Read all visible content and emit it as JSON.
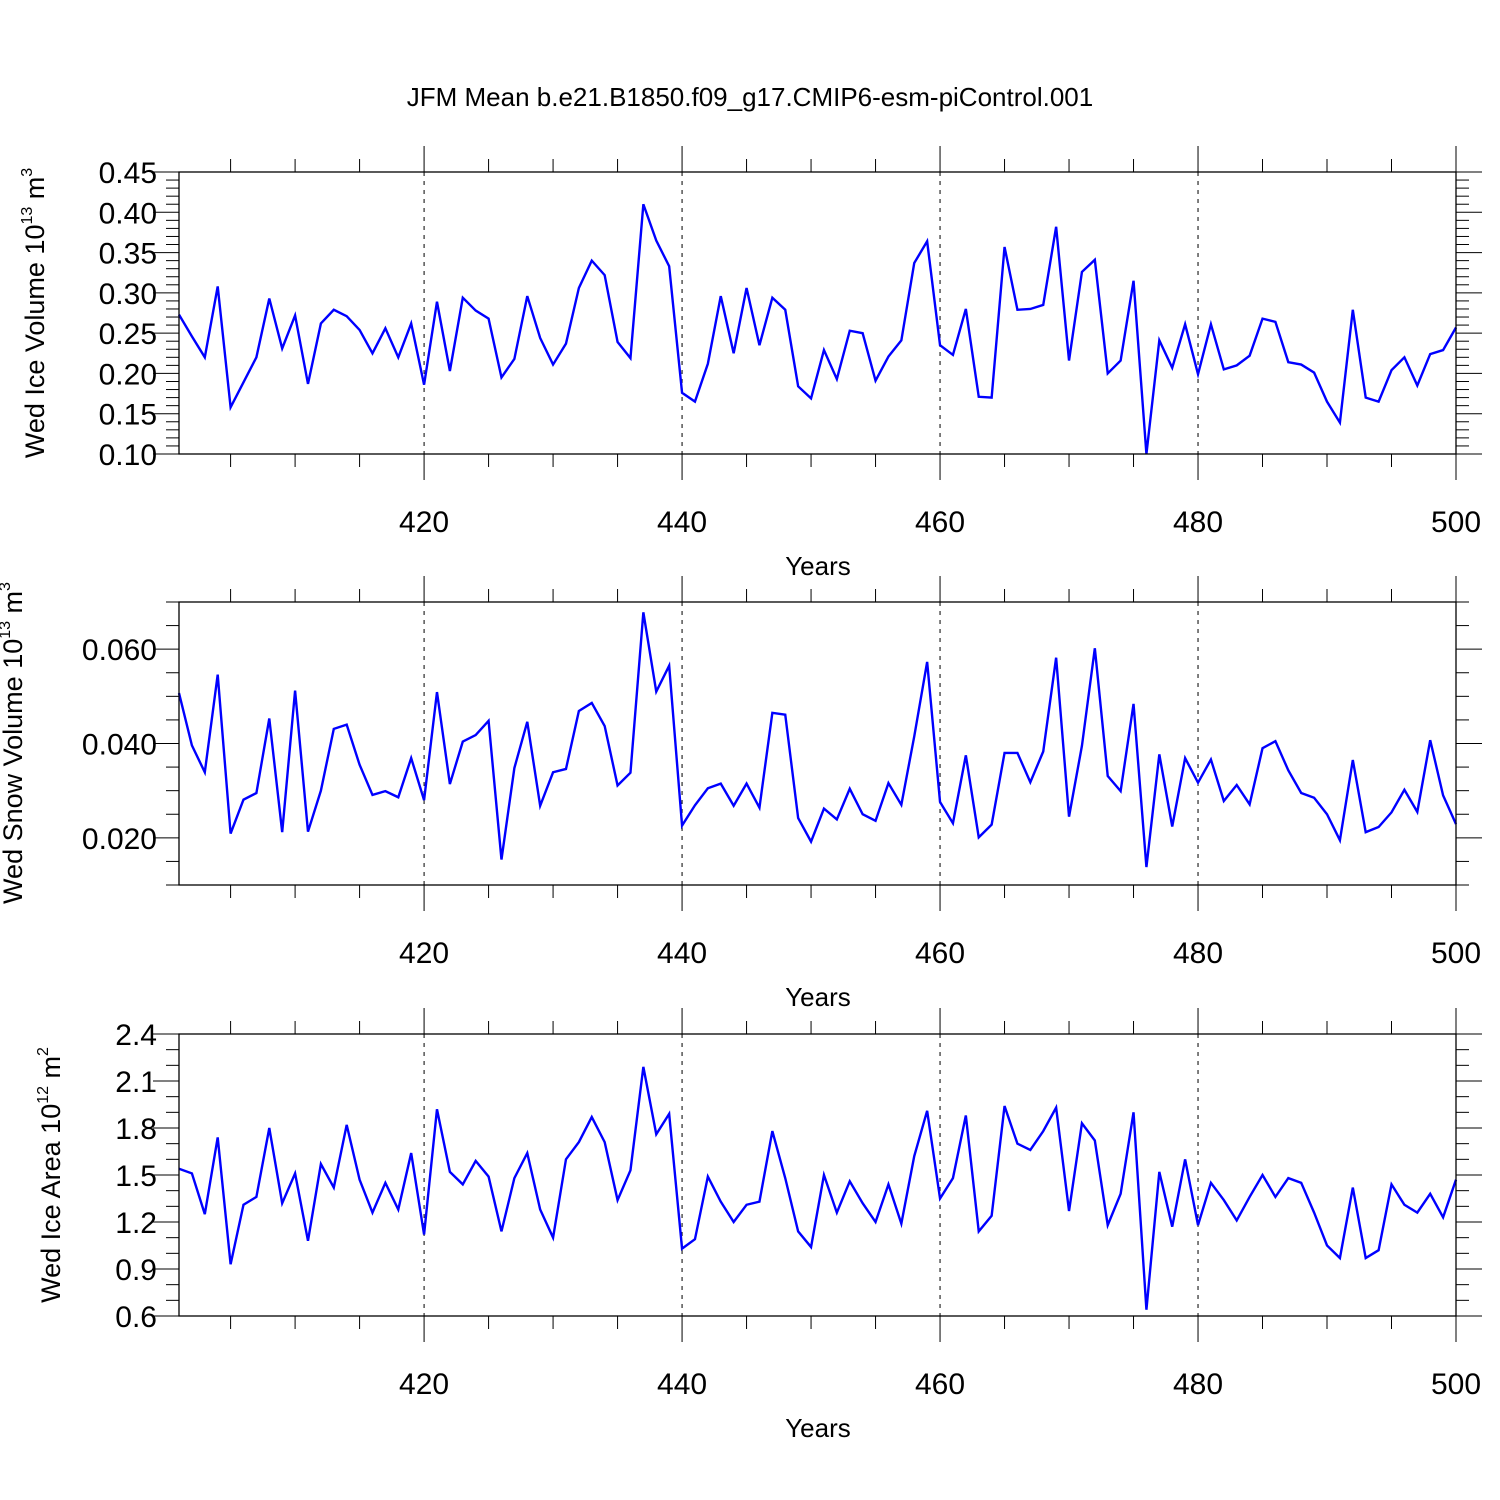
{
  "title": "JFM Mean b.e21.B1850.f09_g17.CMIP6-esm-piControl.001",
  "chart_data": [
    {
      "type": "line",
      "ylabel": {
        "main": "Wed Ice Volume 10",
        "exp": "13",
        "unit": " m",
        "unit_exp": "3"
      },
      "xlabel": "Years",
      "xlim": [
        401,
        500
      ],
      "ylim": [
        0.1,
        0.45
      ],
      "yticks": [
        0.1,
        0.15,
        0.2,
        0.25,
        0.3,
        0.35,
        0.4,
        0.45
      ],
      "ytick_labels": [
        "0.10",
        "0.15",
        "0.20",
        "0.25",
        "0.30",
        "0.35",
        "0.40",
        "0.45"
      ],
      "ymajor_step": 0.05,
      "yminor_step": 0.01,
      "xticks": [
        420,
        440,
        460,
        480,
        500
      ],
      "xtick_labels": [
        "420",
        "440",
        "460",
        "480",
        "500"
      ],
      "grid_x": [
        420,
        440,
        460,
        480
      ],
      "color": "#0000ff",
      "x_start": 401,
      "values": [
        0.273,
        0.246,
        0.22,
        0.308,
        0.158,
        0.189,
        0.22,
        0.293,
        0.231,
        0.272,
        0.187,
        0.262,
        0.279,
        0.271,
        0.254,
        0.225,
        0.256,
        0.22,
        0.262,
        0.186,
        0.289,
        0.203,
        0.294,
        0.278,
        0.268,
        0.195,
        0.218,
        0.296,
        0.244,
        0.211,
        0.237,
        0.306,
        0.34,
        0.322,
        0.239,
        0.219,
        0.41,
        0.365,
        0.333,
        0.176,
        0.165,
        0.212,
        0.296,
        0.225,
        0.306,
        0.235,
        0.294,
        0.279,
        0.184,
        0.169,
        0.229,
        0.193,
        0.253,
        0.25,
        0.191,
        0.221,
        0.241,
        0.337,
        0.364,
        0.235,
        0.223,
        0.28,
        0.171,
        0.17,
        0.357,
        0.279,
        0.28,
        0.285,
        0.382,
        0.216,
        0.326,
        0.341,
        0.2,
        0.216,
        0.315,
        0.1,
        0.241,
        0.207,
        0.261,
        0.199,
        0.261,
        0.205,
        0.21,
        0.222,
        0.268,
        0.264,
        0.214,
        0.211,
        0.201,
        0.165,
        0.139,
        0.279,
        0.17,
        0.165,
        0.204,
        0.22,
        0.185,
        0.224,
        0.229,
        0.257
      ]
    },
    {
      "type": "line",
      "ylabel": {
        "main": "Wed Snow Volume 10",
        "exp": "13",
        "unit": " m",
        "unit_exp": "3"
      },
      "xlabel": "Years",
      "xlim": [
        401,
        500
      ],
      "ylim": [
        0.01,
        0.07
      ],
      "yticks": [
        0.02,
        0.04,
        0.06
      ],
      "ytick_labels": [
        "0.020",
        "0.040",
        "0.060"
      ],
      "ymajor_step": 0.02,
      "yminor_step": 0.005,
      "xticks": [
        420,
        440,
        460,
        480,
        500
      ],
      "xtick_labels": [
        "420",
        "440",
        "460",
        "480",
        "500"
      ],
      "grid_x": [
        420,
        440,
        460,
        480
      ],
      "color": "#0000ff",
      "x_start": 401,
      "values": [
        0.0507,
        0.0396,
        0.0339,
        0.0546,
        0.0209,
        0.0281,
        0.0295,
        0.0453,
        0.0212,
        0.0512,
        0.0213,
        0.03,
        0.0431,
        0.044,
        0.0355,
        0.0291,
        0.0299,
        0.0286,
        0.0369,
        0.028,
        0.0509,
        0.0314,
        0.0404,
        0.0418,
        0.0448,
        0.0154,
        0.0348,
        0.0446,
        0.0268,
        0.0339,
        0.0346,
        0.0469,
        0.0486,
        0.0437,
        0.0311,
        0.0338,
        0.0678,
        0.051,
        0.0565,
        0.0226,
        0.0269,
        0.0305,
        0.0315,
        0.0268,
        0.0315,
        0.0264,
        0.0465,
        0.0461,
        0.0242,
        0.0192,
        0.0262,
        0.0239,
        0.0304,
        0.025,
        0.0236,
        0.0316,
        0.027,
        0.0415,
        0.0573,
        0.0276,
        0.0231,
        0.0375,
        0.0201,
        0.0228,
        0.038,
        0.038,
        0.0318,
        0.0383,
        0.0582,
        0.0245,
        0.0395,
        0.0602,
        0.0331,
        0.0299,
        0.0484,
        0.0138,
        0.0377,
        0.0224,
        0.0369,
        0.0317,
        0.0366,
        0.0278,
        0.0312,
        0.0271,
        0.039,
        0.0405,
        0.0343,
        0.0295,
        0.0285,
        0.025,
        0.0195,
        0.0365,
        0.0212,
        0.0223,
        0.0254,
        0.0302,
        0.0255,
        0.0407,
        0.029,
        0.0229
      ]
    },
    {
      "type": "line",
      "ylabel": {
        "main": "Wed Ice Area 10",
        "exp": "12",
        "unit": " m",
        "unit_exp": "2"
      },
      "xlabel": "Years",
      "xlim": [
        401,
        500
      ],
      "ylim": [
        0.6,
        2.4
      ],
      "yticks": [
        0.6,
        0.9,
        1.2,
        1.5,
        1.8,
        2.1,
        2.4
      ],
      "ytick_labels": [
        "0.6",
        "0.9",
        "1.2",
        "1.5",
        "1.8",
        "2.1",
        "2.4"
      ],
      "ymajor_step": 0.3,
      "yminor_step": 0.1,
      "xticks": [
        420,
        440,
        460,
        480,
        500
      ],
      "xtick_labels": [
        "420",
        "440",
        "460",
        "480",
        "500"
      ],
      "grid_x": [
        420,
        440,
        460,
        480
      ],
      "color": "#0000ff",
      "x_start": 401,
      "values": [
        1.54,
        1.51,
        1.25,
        1.74,
        0.93,
        1.31,
        1.36,
        1.8,
        1.32,
        1.51,
        1.08,
        1.57,
        1.42,
        1.82,
        1.47,
        1.26,
        1.45,
        1.28,
        1.64,
        1.12,
        1.92,
        1.52,
        1.44,
        1.59,
        1.49,
        1.14,
        1.48,
        1.64,
        1.28,
        1.1,
        1.6,
        1.71,
        1.87,
        1.71,
        1.34,
        1.53,
        2.19,
        1.76,
        1.89,
        1.03,
        1.09,
        1.49,
        1.33,
        1.2,
        1.31,
        1.33,
        1.78,
        1.48,
        1.14,
        1.04,
        1.5,
        1.26,
        1.46,
        1.32,
        1.2,
        1.44,
        1.19,
        1.62,
        1.91,
        1.35,
        1.48,
        1.88,
        1.14,
        1.24,
        1.94,
        1.7,
        1.66,
        1.78,
        1.93,
        1.27,
        1.83,
        1.72,
        1.18,
        1.38,
        1.9,
        0.64,
        1.52,
        1.17,
        1.6,
        1.18,
        1.45,
        1.34,
        1.21,
        1.36,
        1.5,
        1.36,
        1.48,
        1.45,
        1.26,
        1.05,
        0.97,
        1.42,
        0.97,
        1.02,
        1.44,
        1.31,
        1.26,
        1.38,
        1.23,
        1.47
      ]
    }
  ]
}
